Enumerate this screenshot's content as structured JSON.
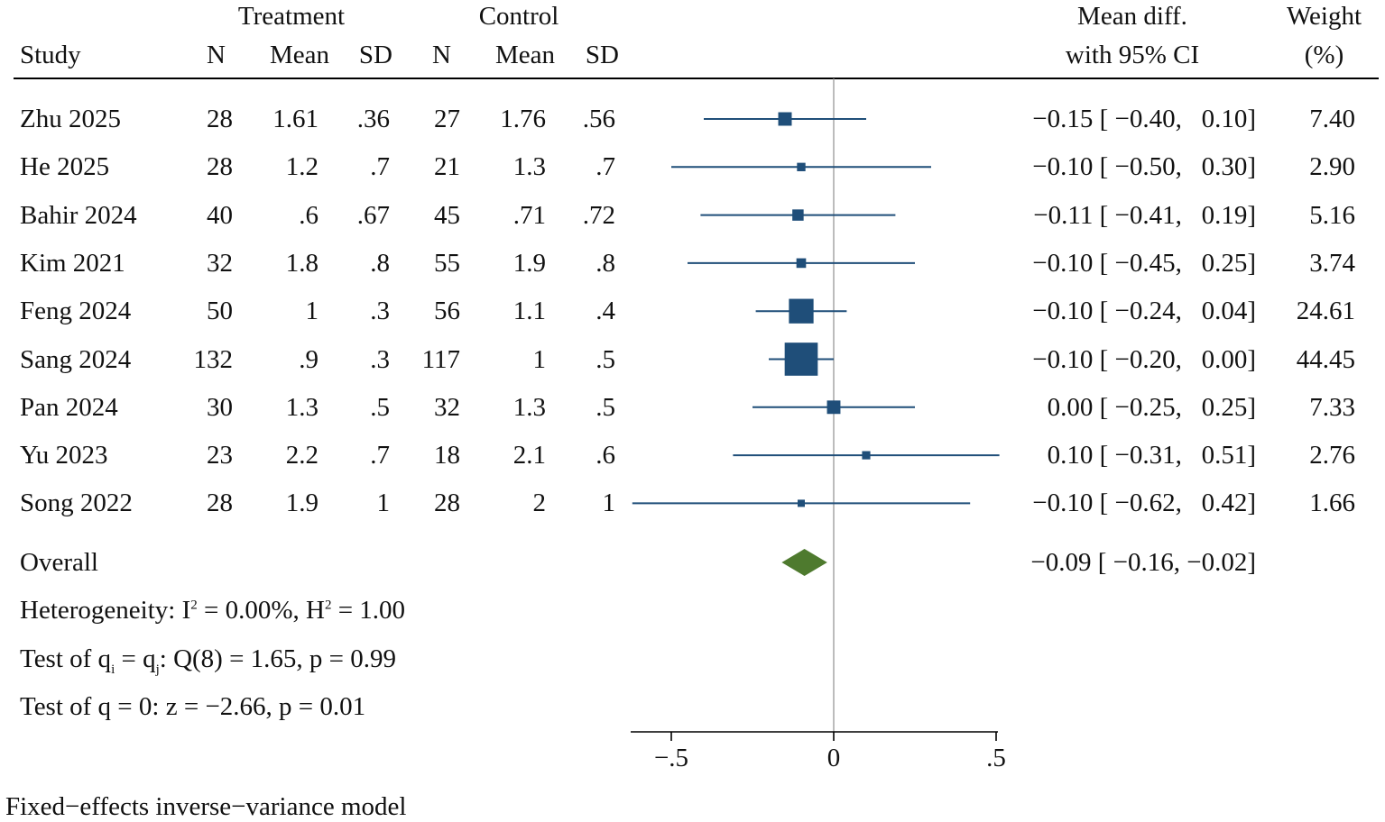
{
  "header": {
    "treatment": "Treatment",
    "control": "Control",
    "study": "Study",
    "n": "N",
    "mean": "Mean",
    "sd": "SD",
    "mean_diff_1": "Mean diff.",
    "mean_diff_2": "with 95% CI",
    "weight_1": "Weight",
    "weight_2": "(%)"
  },
  "chart_data": {
    "type": "forest",
    "x_ticks": [
      "−.5",
      "0",
      ".5"
    ],
    "x_range": [
      -0.625,
      0.5
    ],
    "colors": {
      "study_marker": "#1f4e79",
      "overall_diamond": "#4e7a2e",
      "ref_line": "#999999"
    },
    "studies": [
      {
        "study": "Zhu 2025",
        "t_n": "28",
        "t_mean": "1.61",
        "t_sd": ".36",
        "c_n": "27",
        "c_mean": "1.76",
        "c_sd": ".56",
        "md": -0.15,
        "lo": -0.4,
        "hi": 0.1,
        "ci_text": "−0.15 [ −0.40,   0.10]",
        "weight": 7.4,
        "weight_text": "7.40"
      },
      {
        "study": "He 2025",
        "t_n": "28",
        "t_mean": "1.2",
        "t_sd": ".7",
        "c_n": "21",
        "c_mean": "1.3",
        "c_sd": ".7",
        "md": -0.1,
        "lo": -0.5,
        "hi": 0.3,
        "ci_text": "−0.10 [ −0.50,   0.30]",
        "weight": 2.9,
        "weight_text": "2.90"
      },
      {
        "study": "Bahir 2024",
        "t_n": "40",
        "t_mean": ".6",
        "t_sd": ".67",
        "c_n": "45",
        "c_mean": ".71",
        "c_sd": ".72",
        "md": -0.11,
        "lo": -0.41,
        "hi": 0.19,
        "ci_text": "−0.11 [ −0.41,   0.19]",
        "weight": 5.16,
        "weight_text": "5.16"
      },
      {
        "study": "Kim 2021",
        "t_n": "32",
        "t_mean": "1.8",
        "t_sd": ".8",
        "c_n": "55",
        "c_mean": "1.9",
        "c_sd": ".8",
        "md": -0.1,
        "lo": -0.45,
        "hi": 0.25,
        "ci_text": "−0.10 [ −0.45,   0.25]",
        "weight": 3.74,
        "weight_text": "3.74"
      },
      {
        "study": "Feng 2024",
        "t_n": "50",
        "t_mean": "1",
        "t_sd": ".3",
        "c_n": "56",
        "c_mean": "1.1",
        "c_sd": ".4",
        "md": -0.1,
        "lo": -0.24,
        "hi": 0.04,
        "ci_text": "−0.10 [ −0.24,   0.04]",
        "weight": 24.61,
        "weight_text": "24.61"
      },
      {
        "study": "Sang 2024",
        "t_n": "132",
        "t_mean": ".9",
        "t_sd": ".3",
        "c_n": "117",
        "c_mean": "1",
        "c_sd": ".5",
        "md": -0.1,
        "lo": -0.2,
        "hi": 0.0,
        "ci_text": "−0.10 [ −0.20,   0.00]",
        "weight": 44.45,
        "weight_text": "44.45"
      },
      {
        "study": "Pan 2024",
        "t_n": "30",
        "t_mean": "1.3",
        "t_sd": ".5",
        "c_n": "32",
        "c_mean": "1.3",
        "c_sd": ".5",
        "md": 0.0,
        "lo": -0.25,
        "hi": 0.25,
        "ci_text": "0.00 [ −0.25,   0.25]",
        "weight": 7.33,
        "weight_text": "7.33"
      },
      {
        "study": "Yu 2023",
        "t_n": "23",
        "t_mean": "2.2",
        "t_sd": ".7",
        "c_n": "18",
        "c_mean": "2.1",
        "c_sd": ".6",
        "md": 0.1,
        "lo": -0.31,
        "hi": 0.51,
        "ci_text": "0.10 [ −0.31,   0.51]",
        "weight": 2.76,
        "weight_text": "2.76"
      },
      {
        "study": "Song 2022",
        "t_n": "28",
        "t_mean": "1.9",
        "t_sd": "1",
        "c_n": "28",
        "c_mean": "2",
        "c_sd": "1",
        "md": -0.1,
        "lo": -0.62,
        "hi": 0.42,
        "ci_text": "−0.10 [ −0.62,   0.42]",
        "weight": 1.66,
        "weight_text": "1.66"
      }
    ],
    "overall": {
      "label": "Overall",
      "md": -0.09,
      "lo": -0.16,
      "hi": -0.02,
      "ci_text": "−0.09 [ −0.16, −0.02]"
    }
  },
  "stats": {
    "heterogeneity_a": "Heterogeneity: I",
    "heterogeneity_b": " = 0.00%, H",
    "heterogeneity_c": " = 1.00",
    "sup": "2",
    "test_qi_a": "Test of q",
    "sub_i": "i",
    "test_qi_b": " = q",
    "sub_j": "j",
    "test_qi_c": ": Q(8) = 1.65, p = 0.99",
    "test_q0": "Test of q = 0: z = −2.66, p = 0.01"
  },
  "footer": "Fixed−effects inverse−variance model"
}
